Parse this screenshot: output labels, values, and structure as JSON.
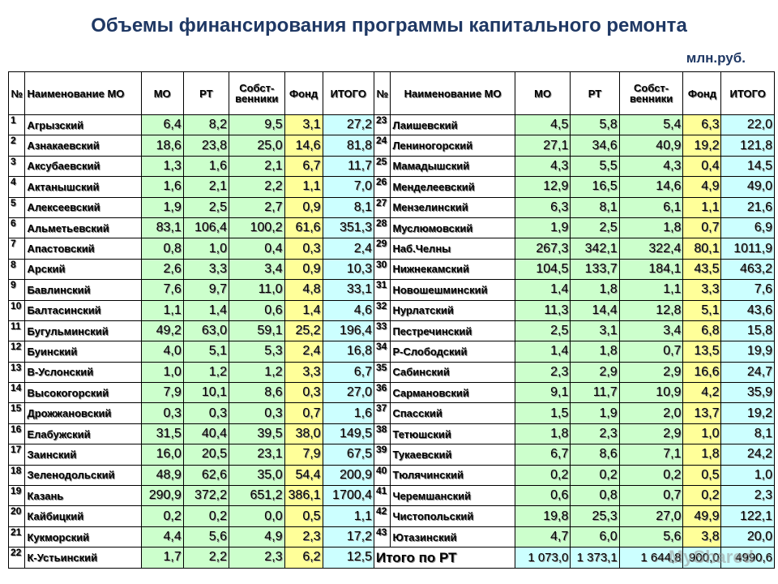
{
  "title": "Объемы финансирования программы капитального ремонта",
  "unit": "млн.руб.",
  "headers": {
    "num": "№",
    "name": "Наименование МО",
    "mo": "МО",
    "rt": "РТ",
    "owners": "Собст- венники",
    "fund": "Фонд",
    "total": "ИТОГО"
  },
  "left_rows": [
    {
      "n": "1",
      "name": "Агрызский",
      "mo": "6,4",
      "rt": "8,2",
      "own": "9,5",
      "fund": "3,1",
      "total": "27,2"
    },
    {
      "n": "2",
      "name": "Азнакаевский",
      "mo": "18,6",
      "rt": "23,8",
      "own": "25,0",
      "fund": "14,6",
      "total": "81,8"
    },
    {
      "n": "3",
      "name": "Аксубаевский",
      "mo": "1,3",
      "rt": "1,6",
      "own": "2,1",
      "fund": "6,7",
      "total": "11,7"
    },
    {
      "n": "4",
      "name": "Актанышский",
      "mo": "1,6",
      "rt": "2,1",
      "own": "2,2",
      "fund": "1,1",
      "total": "7,0"
    },
    {
      "n": "5",
      "name": "Алексеевский",
      "mo": "1,9",
      "rt": "2,5",
      "own": "2,7",
      "fund": "0,9",
      "total": "8,1"
    },
    {
      "n": "6",
      "name": "Альметьевский",
      "mo": "83,1",
      "rt": "106,4",
      "own": "100,2",
      "fund": "61,6",
      "total": "351,3"
    },
    {
      "n": "7",
      "name": "Апастовский",
      "mo": "0,8",
      "rt": "1,0",
      "own": "0,4",
      "fund": "0,3",
      "total": "2,4"
    },
    {
      "n": "8",
      "name": "Арский",
      "mo": "2,6",
      "rt": "3,3",
      "own": "3,4",
      "fund": "0,9",
      "total": "10,3"
    },
    {
      "n": "9",
      "name": "Бавлинский",
      "mo": "7,6",
      "rt": "9,7",
      "own": "11,0",
      "fund": "4,8",
      "total": "33,1"
    },
    {
      "n": "10",
      "name": "Балтасинский",
      "mo": "1,1",
      "rt": "1,4",
      "own": "0,6",
      "fund": "1,4",
      "total": "4,6"
    },
    {
      "n": "11",
      "name": "Бугульминский",
      "mo": "49,2",
      "rt": "63,0",
      "own": "59,1",
      "fund": "25,2",
      "total": "196,4"
    },
    {
      "n": "12",
      "name": "Буинский",
      "mo": "4,0",
      "rt": "5,1",
      "own": "5,3",
      "fund": "2,4",
      "total": "16,8"
    },
    {
      "n": "13",
      "name": "В-Услонский",
      "mo": "1,0",
      "rt": "1,2",
      "own": "1,2",
      "fund": "3,3",
      "total": "6,7"
    },
    {
      "n": "14",
      "name": "Высокогорский",
      "mo": "7,9",
      "rt": "10,1",
      "own": "8,6",
      "fund": "0,3",
      "total": "27,0"
    },
    {
      "n": "15",
      "name": "Дрожжановский",
      "mo": "0,3",
      "rt": "0,3",
      "own": "0,3",
      "fund": "0,7",
      "total": "1,6"
    },
    {
      "n": "16",
      "name": "Елабужский",
      "mo": "31,5",
      "rt": "40,4",
      "own": "39,5",
      "fund": "38,0",
      "total": "149,5"
    },
    {
      "n": "17",
      "name": "Заинский",
      "mo": "16,0",
      "rt": "20,5",
      "own": "23,1",
      "fund": "7,9",
      "total": "67,5"
    },
    {
      "n": "18",
      "name": "Зеленодольский",
      "mo": "48,9",
      "rt": "62,6",
      "own": "35,0",
      "fund": "54,4",
      "total": "200,9"
    },
    {
      "n": "19",
      "name": "Казань",
      "mo": "290,9",
      "rt": "372,2",
      "own": "651,2",
      "fund": "386,1",
      "total": "1700,4"
    },
    {
      "n": "20",
      "name": "Кайбицкий",
      "mo": "0,2",
      "rt": "0,2",
      "own": "0,0",
      "fund": "0,5",
      "total": "1,1"
    },
    {
      "n": "21",
      "name": "Кукморский",
      "mo": "4,4",
      "rt": "5,6",
      "own": "4,9",
      "fund": "2,3",
      "total": "17,2"
    },
    {
      "n": "22",
      "name": "К-Устьинский",
      "mo": "1,7",
      "rt": "2,2",
      "own": "2,3",
      "fund": "6,2",
      "total": "12,5"
    }
  ],
  "right_rows": [
    {
      "n": "23",
      "name": "Лаишевский",
      "mo": "4,5",
      "rt": "5,8",
      "own": "5,4",
      "fund": "6,3",
      "total": "22,0"
    },
    {
      "n": "24",
      "name": "Лениногорский",
      "mo": "27,1",
      "rt": "34,6",
      "own": "40,9",
      "fund": "19,2",
      "total": "121,8"
    },
    {
      "n": "25",
      "name": "Мамадышский",
      "mo": "4,3",
      "rt": "5,5",
      "own": "4,3",
      "fund": "0,4",
      "total": "14,5"
    },
    {
      "n": "26",
      "name": "Менделеевский",
      "mo": "12,9",
      "rt": "16,5",
      "own": "14,6",
      "fund": "4,9",
      "total": "49,0"
    },
    {
      "n": "27",
      "name": "Мензелинский",
      "mo": "6,3",
      "rt": "8,1",
      "own": "6,1",
      "fund": "1,1",
      "total": "21,6"
    },
    {
      "n": "28",
      "name": "Муслюмовский",
      "mo": "1,9",
      "rt": "2,5",
      "own": "1,8",
      "fund": "0,7",
      "total": "6,9"
    },
    {
      "n": "29",
      "name": "Наб.Челны",
      "mo": "267,3",
      "rt": "342,1",
      "own": "322,4",
      "fund": "80,1",
      "total": "1011,9"
    },
    {
      "n": "30",
      "name": "Нижнекамский",
      "mo": "104,5",
      "rt": "133,7",
      "own": "184,1",
      "fund": "43,5",
      "total": "463,2"
    },
    {
      "n": "31",
      "name": "Новошешминский",
      "mo": "1,4",
      "rt": "1,8",
      "own": "1,1",
      "fund": "3,3",
      "total": "7,6"
    },
    {
      "n": "32",
      "name": "Нурлатский",
      "mo": "11,3",
      "rt": "14,4",
      "own": "12,8",
      "fund": "5,1",
      "total": "43,6"
    },
    {
      "n": "33",
      "name": "Пестречинский",
      "mo": "2,5",
      "rt": "3,1",
      "own": "3,4",
      "fund": "6,8",
      "total": "15,8"
    },
    {
      "n": "34",
      "name": "Р-Слободский",
      "mo": "1,4",
      "rt": "1,8",
      "own": "0,7",
      "fund": "13,5",
      "total": "19,9"
    },
    {
      "n": "35",
      "name": "Сабинский",
      "mo": "2,3",
      "rt": "2,9",
      "own": "2,9",
      "fund": "16,6",
      "total": "24,7"
    },
    {
      "n": "36",
      "name": "Сармановский",
      "mo": "9,1",
      "rt": "11,7",
      "own": "10,9",
      "fund": "4,2",
      "total": "35,9"
    },
    {
      "n": "37",
      "name": "Спасский",
      "mo": "1,5",
      "rt": "1,9",
      "own": "2,0",
      "fund": "13,7",
      "total": "19,2"
    },
    {
      "n": "38",
      "name": "Тетюшский",
      "mo": "1,8",
      "rt": "2,3",
      "own": "2,9",
      "fund": "1,0",
      "total": "8,1"
    },
    {
      "n": "39",
      "name": "Тукаевский",
      "mo": "6,7",
      "rt": "8,6",
      "own": "7,1",
      "fund": "1,8",
      "total": "24,2"
    },
    {
      "n": "40",
      "name": "Тюлячинский",
      "mo": "0,2",
      "rt": "0,2",
      "own": "0,2",
      "fund": "0,5",
      "total": "1,0"
    },
    {
      "n": "41",
      "name": "Черемшанский",
      "mo": "0,6",
      "rt": "0,8",
      "own": "0,7",
      "fund": "0,2",
      "total": "2,3"
    },
    {
      "n": "42",
      "name": "Чистопольский",
      "mo": "19,8",
      "rt": "25,3",
      "own": "27,0",
      "fund": "49,9",
      "total": "122,1"
    },
    {
      "n": "43",
      "name": "Ютазинский",
      "mo": "4,7",
      "rt": "6,0",
      "own": "5,6",
      "fund": "3,8",
      "total": "20,0"
    }
  ],
  "total_row": {
    "label": "Итого по РТ",
    "mo": "1 073,0",
    "rt": "1 373,1",
    "own": "1 644,8",
    "fund": "900,0",
    "total": "4990,6"
  },
  "watermark": "MyShared"
}
